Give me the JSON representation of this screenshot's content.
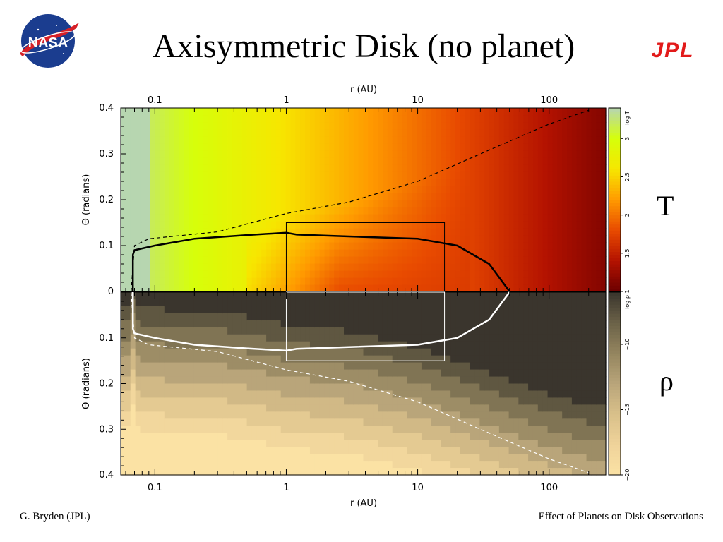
{
  "slide": {
    "title": "Axisymmetric Disk (no planet)",
    "footer_left": "G. Bryden (JPL)",
    "footer_right": "Effect of Planets on Disk Observations",
    "label_top": "T",
    "label_bottom": "ρ",
    "nasa_text": "NASA",
    "jpl_text": "JPL"
  },
  "chart_data": [
    {
      "type": "heatmap",
      "panel": "temperature",
      "xlabel": "r (AU)",
      "xscale": "log",
      "xlim": [
        0.055,
        270
      ],
      "xticks": [
        0.1,
        1,
        10,
        100
      ],
      "xtick_labels": [
        "0.1",
        "1",
        "10",
        "100"
      ],
      "ylabel": "Θ (radians)",
      "ylim": [
        0,
        0.4
      ],
      "yticks": [
        0,
        0.1,
        0.2,
        0.3,
        0.4
      ],
      "ytick_labels": [
        "0",
        "0.1",
        "0.2",
        "0.3",
        "0.4"
      ],
      "colorbar": {
        "label": "log T",
        "range": [
          1,
          3.4
        ],
        "ticks": [
          1,
          1.5,
          2,
          2.5,
          3
        ],
        "tick_labels": [
          "1",
          "1.5",
          "2",
          "2.5",
          "3"
        ],
        "colors": [
          "#6b0000",
          "#b31200",
          "#e84a00",
          "#ff9a00",
          "#f7e600",
          "#d6ff0a",
          "#b7d6b0"
        ]
      },
      "contours": [
        {
          "name": "solid",
          "style": "solid",
          "color": "#000000",
          "points": [
            [
              0.068,
              0
            ],
            [
              0.068,
              0.08
            ],
            [
              0.07,
              0.09
            ],
            [
              0.1,
              0.1
            ],
            [
              0.2,
              0.115
            ],
            [
              0.5,
              0.123
            ],
            [
              1.0,
              0.128
            ],
            [
              1.2,
              0.124
            ],
            [
              3,
              0.12
            ],
            [
              10,
              0.115
            ],
            [
              20,
              0.1
            ],
            [
              35,
              0.06
            ],
            [
              50,
              0
            ]
          ]
        },
        {
          "name": "dashed",
          "style": "dashed",
          "color": "#000000",
          "points": [
            [
              0.066,
              0
            ],
            [
              0.07,
              0.1
            ],
            [
              0.09,
              0.115
            ],
            [
              0.3,
              0.13
            ],
            [
              1,
              0.17
            ],
            [
              3,
              0.195
            ],
            [
              10,
              0.24
            ],
            [
              30,
              0.3
            ],
            [
              100,
              0.365
            ],
            [
              200,
              0.395
            ]
          ]
        }
      ],
      "box": {
        "r": [
          1,
          16
        ],
        "theta": [
          0,
          0.15
        ]
      }
    },
    {
      "type": "heatmap",
      "panel": "density",
      "xlabel": "r (AU)",
      "xscale": "log",
      "xlim": [
        0.055,
        270
      ],
      "xticks": [
        0.1,
        1,
        10,
        100
      ],
      "xtick_labels": [
        "0.1",
        "1",
        "10",
        "100"
      ],
      "ylabel": "Θ (radians)",
      "ylim": [
        0,
        0.4
      ],
      "yticks": [
        0.1,
        0.2,
        0.3,
        0.4
      ],
      "ytick_labels": [
        "0.1",
        "0.2",
        "0.3",
        "0.4"
      ],
      "colorbar": {
        "label": "log ρ",
        "range": [
          -20,
          -6
        ],
        "ticks": [
          -10,
          -15,
          -20
        ],
        "tick_labels": [
          "−10",
          "−15",
          "−20"
        ],
        "colors": [
          "#fbe2a4",
          "#efd39a",
          "#d9c08a",
          "#b9a57a",
          "#94855f",
          "#6b6248",
          "#3a352d"
        ]
      },
      "contours": [
        {
          "name": "solid",
          "style": "solid",
          "color": "#ffffff",
          "points": [
            [
              0.068,
              0
            ],
            [
              0.068,
              0.08
            ],
            [
              0.07,
              0.09
            ],
            [
              0.1,
              0.1
            ],
            [
              0.2,
              0.115
            ],
            [
              0.5,
              0.123
            ],
            [
              1.0,
              0.128
            ],
            [
              1.2,
              0.124
            ],
            [
              3,
              0.12
            ],
            [
              10,
              0.115
            ],
            [
              20,
              0.1
            ],
            [
              35,
              0.06
            ],
            [
              50,
              0
            ]
          ]
        },
        {
          "name": "dashed",
          "style": "dashed",
          "color": "#ffffff",
          "points": [
            [
              0.066,
              0
            ],
            [
              0.07,
              0.1
            ],
            [
              0.09,
              0.115
            ],
            [
              0.3,
              0.13
            ],
            [
              1,
              0.17
            ],
            [
              3,
              0.195
            ],
            [
              10,
              0.24
            ],
            [
              30,
              0.3
            ],
            [
              100,
              0.365
            ],
            [
              200,
              0.395
            ]
          ]
        }
      ],
      "box": {
        "r": [
          1,
          16
        ],
        "theta": [
          0,
          0.15
        ]
      }
    }
  ]
}
